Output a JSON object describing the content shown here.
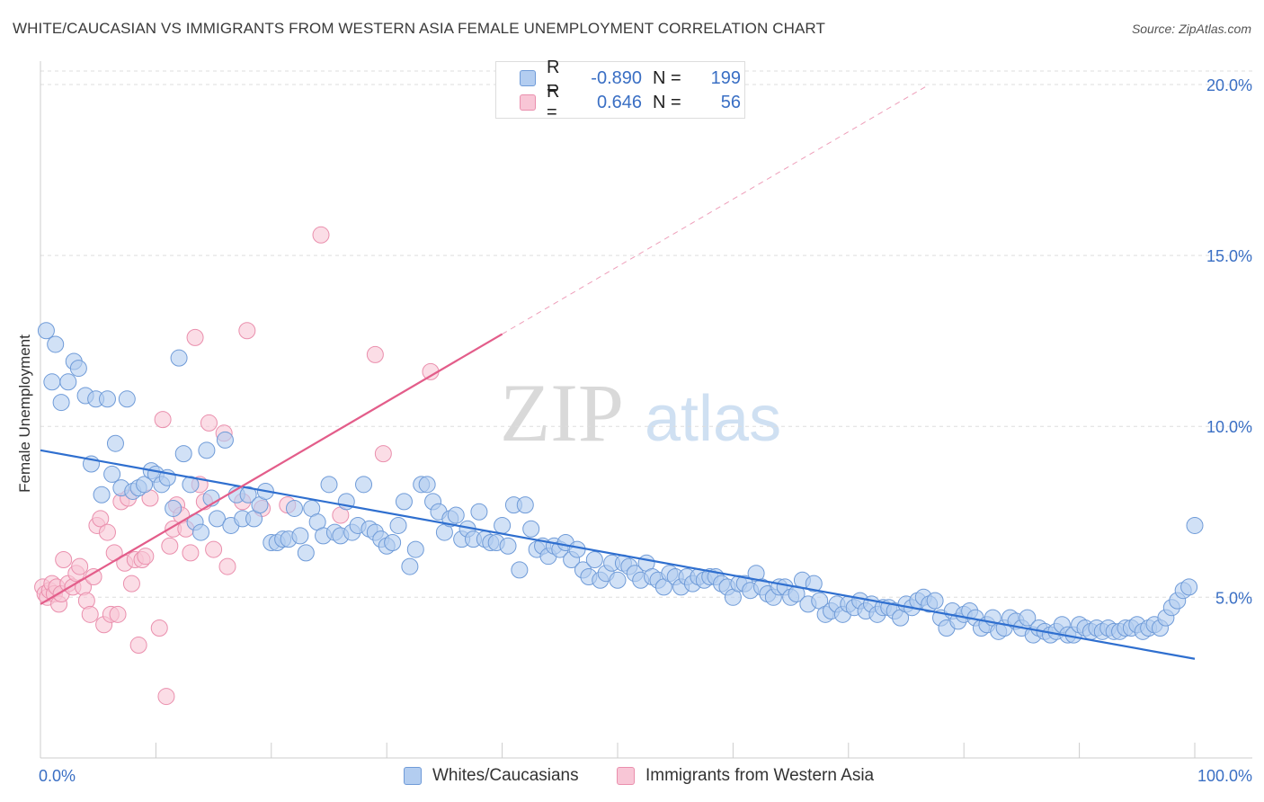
{
  "title": "WHITE/CAUCASIAN VS IMMIGRANTS FROM WESTERN ASIA FEMALE UNEMPLOYMENT CORRELATION CHART",
  "source": "Source: ZipAtlas.com",
  "watermark": {
    "zip": "ZIP",
    "atlas": "atlas"
  },
  "legend_top": {
    "rows": [
      {
        "r_label": "R =",
        "r_value": "-0.890",
        "n_label": "N =",
        "n_value": "199",
        "color": "#7fa8e0"
      },
      {
        "r_label": "R =",
        "r_value": "0.646",
        "n_label": "N =",
        "n_value": "56",
        "color": "#f29ab5"
      }
    ]
  },
  "legend_bottom": [
    {
      "label": "Whites/Caucasians",
      "color": "#7fa8e0"
    },
    {
      "label": "Immigrants from Western Asia",
      "color": "#f29ab5"
    }
  ],
  "chart_data": {
    "type": "scatter",
    "ylabel": "Female Unemployment",
    "xlim": [
      0,
      100
    ],
    "ylim": [
      0.3,
      20.5
    ],
    "y_ticks": [
      {
        "value": 5,
        "label": "5.0%"
      },
      {
        "value": 10,
        "label": "10.0%"
      },
      {
        "value": 15,
        "label": "15.0%"
      },
      {
        "value": 20,
        "label": "20.0%"
      }
    ],
    "x_tick_labels": [
      {
        "value": 0,
        "label": "0.0%"
      },
      {
        "value": 100,
        "label": "100.0%"
      }
    ],
    "x_minor_ticks": [
      10,
      20,
      30,
      40,
      50,
      60,
      70,
      80,
      90,
      100
    ],
    "grid": "horizontal dashed",
    "colors": {
      "blue_fill": "#b3cdf0",
      "blue_stroke": "#6f9bd8",
      "blue_line": "#2f6fcf",
      "pink_fill": "#f8c6d6",
      "pink_stroke": "#ea8fad",
      "pink_line": "#e35d8a",
      "axis_label": "#3a6fc4"
    },
    "series": [
      {
        "name": "Whites/Caucasians",
        "trend": {
          "x0": 0,
          "y0": 9.3,
          "x1": 100,
          "y1": 3.2,
          "dashed_extension": false
        },
        "points": [
          [
            0.5,
            12.8
          ],
          [
            1.0,
            11.3
          ],
          [
            1.3,
            12.4
          ],
          [
            1.8,
            10.7
          ],
          [
            2.4,
            11.3
          ],
          [
            2.9,
            11.9
          ],
          [
            3.3,
            11.7
          ],
          [
            3.9,
            10.9
          ],
          [
            4.4,
            8.9
          ],
          [
            4.8,
            10.8
          ],
          [
            5.3,
            8.0
          ],
          [
            5.8,
            10.8
          ],
          [
            6.2,
            8.6
          ],
          [
            6.5,
            9.5
          ],
          [
            7.0,
            8.2
          ],
          [
            7.5,
            10.8
          ],
          [
            8.0,
            8.1
          ],
          [
            8.5,
            8.2
          ],
          [
            9.0,
            8.3
          ],
          [
            9.6,
            8.7
          ],
          [
            10.0,
            8.6
          ],
          [
            10.5,
            8.3
          ],
          [
            11.0,
            8.5
          ],
          [
            11.5,
            7.6
          ],
          [
            12.0,
            12.0
          ],
          [
            12.4,
            9.2
          ],
          [
            13.0,
            8.3
          ],
          [
            13.4,
            7.2
          ],
          [
            13.9,
            6.9
          ],
          [
            14.4,
            9.3
          ],
          [
            14.8,
            7.9
          ],
          [
            15.3,
            7.3
          ],
          [
            16.0,
            9.6
          ],
          [
            16.5,
            7.1
          ],
          [
            17.0,
            8.0
          ],
          [
            17.5,
            7.3
          ],
          [
            18.0,
            8.0
          ],
          [
            18.5,
            7.3
          ],
          [
            19.0,
            7.7
          ],
          [
            19.5,
            8.1
          ],
          [
            20.0,
            6.6
          ],
          [
            20.5,
            6.6
          ],
          [
            21.0,
            6.7
          ],
          [
            21.5,
            6.7
          ],
          [
            22.0,
            7.6
          ],
          [
            22.5,
            6.8
          ],
          [
            23.0,
            6.3
          ],
          [
            23.5,
            7.6
          ],
          [
            24.0,
            7.2
          ],
          [
            24.5,
            6.8
          ],
          [
            25.0,
            8.3
          ],
          [
            25.5,
            6.9
          ],
          [
            26.0,
            6.8
          ],
          [
            26.5,
            7.8
          ],
          [
            27.0,
            6.9
          ],
          [
            27.5,
            7.1
          ],
          [
            28.0,
            8.3
          ],
          [
            28.5,
            7.0
          ],
          [
            29.0,
            6.9
          ],
          [
            29.5,
            6.7
          ],
          [
            30.0,
            6.5
          ],
          [
            30.5,
            6.6
          ],
          [
            31.0,
            7.1
          ],
          [
            31.5,
            7.8
          ],
          [
            32.0,
            5.9
          ],
          [
            32.5,
            6.4
          ],
          [
            33.0,
            8.3
          ],
          [
            33.5,
            8.3
          ],
          [
            34.0,
            7.8
          ],
          [
            34.5,
            7.5
          ],
          [
            35.0,
            6.9
          ],
          [
            35.5,
            7.3
          ],
          [
            36.0,
            7.4
          ],
          [
            36.5,
            6.7
          ],
          [
            37.0,
            7.0
          ],
          [
            37.5,
            6.7
          ],
          [
            38.0,
            7.5
          ],
          [
            38.5,
            6.7
          ],
          [
            39.0,
            6.6
          ],
          [
            39.5,
            6.6
          ],
          [
            40.0,
            7.1
          ],
          [
            40.5,
            6.5
          ],
          [
            41.0,
            7.7
          ],
          [
            41.5,
            5.8
          ],
          [
            42.0,
            7.7
          ],
          [
            42.5,
            7.0
          ],
          [
            43.0,
            6.4
          ],
          [
            43.5,
            6.5
          ],
          [
            44.0,
            6.2
          ],
          [
            44.5,
            6.5
          ],
          [
            45.0,
            6.4
          ],
          [
            45.5,
            6.6
          ],
          [
            46.0,
            6.1
          ],
          [
            46.5,
            6.4
          ],
          [
            47.0,
            5.8
          ],
          [
            47.5,
            5.6
          ],
          [
            48.0,
            6.1
          ],
          [
            48.5,
            5.5
          ],
          [
            49.0,
            5.7
          ],
          [
            49.5,
            6.0
          ],
          [
            50.0,
            5.5
          ],
          [
            50.5,
            6.0
          ],
          [
            51.0,
            5.9
          ],
          [
            51.5,
            5.7
          ],
          [
            52.0,
            5.5
          ],
          [
            52.5,
            6.0
          ],
          [
            53.0,
            5.6
          ],
          [
            53.5,
            5.5
          ],
          [
            54.0,
            5.3
          ],
          [
            54.5,
            5.7
          ],
          [
            55.0,
            5.6
          ],
          [
            55.5,
            5.3
          ],
          [
            56.0,
            5.6
          ],
          [
            56.5,
            5.4
          ],
          [
            57.0,
            5.6
          ],
          [
            57.5,
            5.5
          ],
          [
            58.0,
            5.6
          ],
          [
            58.5,
            5.6
          ],
          [
            59.0,
            5.4
          ],
          [
            59.5,
            5.3
          ],
          [
            60.0,
            5.0
          ],
          [
            60.5,
            5.4
          ],
          [
            61.0,
            5.4
          ],
          [
            61.5,
            5.2
          ],
          [
            62.0,
            5.7
          ],
          [
            62.5,
            5.3
          ],
          [
            63.0,
            5.1
          ],
          [
            63.5,
            5.0
          ],
          [
            64.0,
            5.3
          ],
          [
            64.5,
            5.3
          ],
          [
            65.0,
            5.0
          ],
          [
            65.5,
            5.1
          ],
          [
            66.0,
            5.5
          ],
          [
            66.5,
            4.8
          ],
          [
            67.0,
            5.4
          ],
          [
            67.5,
            4.9
          ],
          [
            68.0,
            4.5
          ],
          [
            68.5,
            4.6
          ],
          [
            69.0,
            4.8
          ],
          [
            69.5,
            4.5
          ],
          [
            70.0,
            4.8
          ],
          [
            70.5,
            4.7
          ],
          [
            71.0,
            4.9
          ],
          [
            71.5,
            4.6
          ],
          [
            72.0,
            4.8
          ],
          [
            72.5,
            4.5
          ],
          [
            73.0,
            4.7
          ],
          [
            73.5,
            4.7
          ],
          [
            74.0,
            4.6
          ],
          [
            74.5,
            4.4
          ],
          [
            75.0,
            4.8
          ],
          [
            75.5,
            4.7
          ],
          [
            76.0,
            4.9
          ],
          [
            76.5,
            5.0
          ],
          [
            77.0,
            4.8
          ],
          [
            77.5,
            4.9
          ],
          [
            78.0,
            4.4
          ],
          [
            78.5,
            4.1
          ],
          [
            79.0,
            4.6
          ],
          [
            79.5,
            4.3
          ],
          [
            80.0,
            4.5
          ],
          [
            80.5,
            4.6
          ],
          [
            81.0,
            4.4
          ],
          [
            81.5,
            4.1
          ],
          [
            82.0,
            4.2
          ],
          [
            82.5,
            4.4
          ],
          [
            83.0,
            4.0
          ],
          [
            83.5,
            4.1
          ],
          [
            84.0,
            4.4
          ],
          [
            84.5,
            4.3
          ],
          [
            85.0,
            4.1
          ],
          [
            85.5,
            4.4
          ],
          [
            86.0,
            3.9
          ],
          [
            86.5,
            4.1
          ],
          [
            87.0,
            4.0
          ],
          [
            87.5,
            3.9
          ],
          [
            88.0,
            4.0
          ],
          [
            88.5,
            4.2
          ],
          [
            89.0,
            3.9
          ],
          [
            89.5,
            3.9
          ],
          [
            90.0,
            4.2
          ],
          [
            90.5,
            4.1
          ],
          [
            91.0,
            4.0
          ],
          [
            91.5,
            4.1
          ],
          [
            92.0,
            4.0
          ],
          [
            92.5,
            4.1
          ],
          [
            93.0,
            4.0
          ],
          [
            93.5,
            4.0
          ],
          [
            94.0,
            4.1
          ],
          [
            94.5,
            4.1
          ],
          [
            95.0,
            4.2
          ],
          [
            95.5,
            4.0
          ],
          [
            96.0,
            4.1
          ],
          [
            96.5,
            4.2
          ],
          [
            97.0,
            4.1
          ],
          [
            97.5,
            4.4
          ],
          [
            98.0,
            4.7
          ],
          [
            98.5,
            4.9
          ],
          [
            99.0,
            5.2
          ],
          [
            99.5,
            5.3
          ],
          [
            100.0,
            7.1
          ]
        ]
      },
      {
        "name": "Immigrants from Western Asia",
        "trend": {
          "x0": 0,
          "y0": 4.8,
          "x1": 40,
          "y1": 12.7,
          "dashed_extension": true,
          "dashed_to_x": 77,
          "dashed_to_y": 20.0
        },
        "points": [
          [
            0.2,
            5.3
          ],
          [
            0.4,
            5.1
          ],
          [
            0.6,
            5.0
          ],
          [
            0.8,
            5.2
          ],
          [
            1.0,
            5.4
          ],
          [
            1.2,
            5.1
          ],
          [
            1.4,
            5.3
          ],
          [
            1.6,
            4.8
          ],
          [
            1.8,
            5.1
          ],
          [
            2.0,
            6.1
          ],
          [
            2.4,
            5.4
          ],
          [
            2.8,
            5.3
          ],
          [
            3.1,
            5.7
          ],
          [
            3.4,
            5.9
          ],
          [
            3.7,
            5.3
          ],
          [
            4.0,
            4.9
          ],
          [
            4.3,
            4.5
          ],
          [
            4.6,
            5.6
          ],
          [
            4.9,
            7.1
          ],
          [
            5.2,
            7.3
          ],
          [
            5.5,
            4.2
          ],
          [
            5.8,
            6.9
          ],
          [
            6.1,
            4.5
          ],
          [
            6.4,
            6.3
          ],
          [
            6.7,
            4.5
          ],
          [
            7.0,
            7.8
          ],
          [
            7.3,
            6.0
          ],
          [
            7.6,
            7.9
          ],
          [
            7.9,
            5.4
          ],
          [
            8.2,
            6.1
          ],
          [
            8.5,
            3.6
          ],
          [
            8.8,
            6.1
          ],
          [
            9.1,
            6.2
          ],
          [
            9.5,
            7.9
          ],
          [
            10.3,
            4.1
          ],
          [
            10.6,
            10.2
          ],
          [
            10.9,
            2.1
          ],
          [
            11.2,
            6.5
          ],
          [
            11.5,
            7.0
          ],
          [
            11.8,
            7.7
          ],
          [
            12.2,
            7.4
          ],
          [
            12.6,
            7.0
          ],
          [
            13.0,
            6.3
          ],
          [
            13.4,
            12.6
          ],
          [
            13.8,
            8.3
          ],
          [
            14.2,
            7.8
          ],
          [
            14.6,
            10.1
          ],
          [
            15.0,
            6.4
          ],
          [
            15.9,
            9.8
          ],
          [
            16.2,
            5.9
          ],
          [
            17.5,
            7.8
          ],
          [
            17.9,
            12.8
          ],
          [
            19.2,
            7.6
          ],
          [
            21.4,
            7.7
          ],
          [
            24.3,
            15.6
          ],
          [
            26.0,
            7.4
          ],
          [
            29.0,
            12.1
          ],
          [
            29.7,
            9.2
          ],
          [
            33.8,
            11.6
          ]
        ]
      }
    ]
  }
}
